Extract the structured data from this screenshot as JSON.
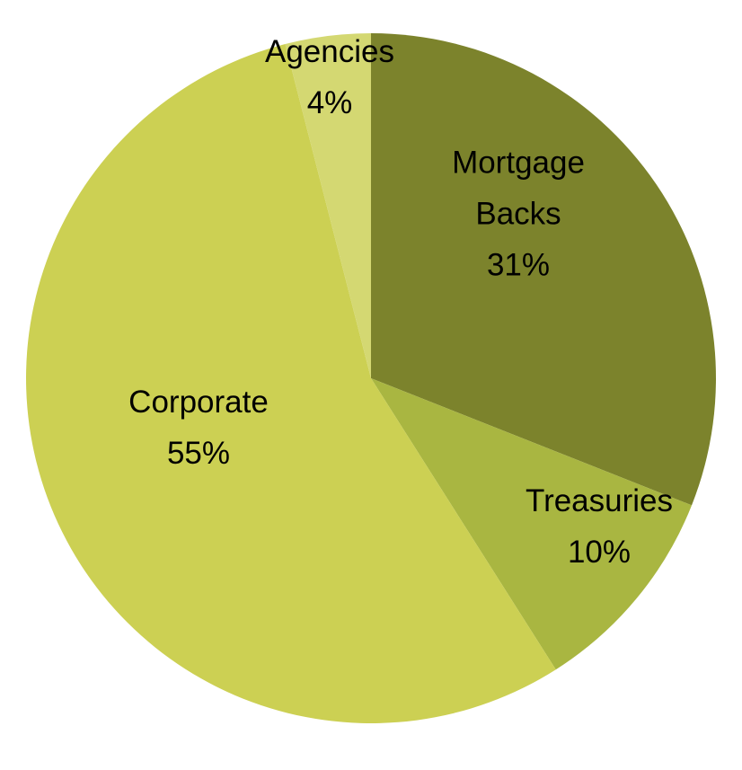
{
  "chart_data": {
    "type": "pie",
    "start_angle": "12 o'clock",
    "direction": "clockwise",
    "slices": [
      {
        "name": "Mortgage Backs",
        "label_lines": [
          "Mortgage",
          "Backs"
        ],
        "value": 31,
        "value_label": "31%",
        "color": "#7C832C"
      },
      {
        "name": "Treasuries",
        "label_lines": [
          "Treasuries"
        ],
        "value": 10,
        "value_label": "10%",
        "color": "#A9B641"
      },
      {
        "name": "Corporate",
        "label_lines": [
          "Corporate"
        ],
        "value": 55,
        "value_label": "55%",
        "color": "#CCD053"
      },
      {
        "name": "Agencies",
        "label_lines": [
          "Agencies"
        ],
        "value": 4,
        "value_label": "4%",
        "color": "#D4D872"
      }
    ],
    "legend": "none"
  }
}
